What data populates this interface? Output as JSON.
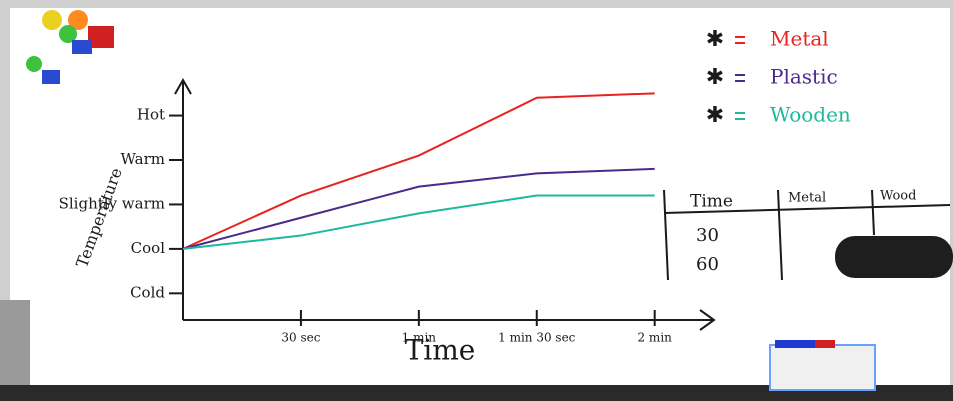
{
  "chart_data": {
    "type": "line",
    "x_label": "Time",
    "y_label": "Temperature",
    "x": [
      0,
      30,
      60,
      90,
      120
    ],
    "xlim": [
      0,
      130
    ],
    "xticks": [
      {
        "value": 30,
        "label": "30 sec"
      },
      {
        "value": 60,
        "label": "1 min"
      },
      {
        "value": 90,
        "label": "1 min 30 sec"
      },
      {
        "value": 120,
        "label": "2 min"
      }
    ],
    "ylim": [
      -0.6,
      4.8
    ],
    "yticks": [
      {
        "value": 0,
        "label": "Cold"
      },
      {
        "value": 1,
        "label": "Cool"
      },
      {
        "value": 2,
        "label": "Slightly warm"
      },
      {
        "value": 3,
        "label": "Warm"
      },
      {
        "value": 4,
        "label": "Hot"
      }
    ],
    "series": [
      {
        "name": "Metal",
        "color": "#e8231f",
        "values": [
          1,
          2.2,
          3.1,
          4.4,
          4.5
        ]
      },
      {
        "name": "Plastic",
        "color": "#4a2a8a",
        "values": [
          1,
          1.7,
          2.4,
          2.7,
          2.8
        ]
      },
      {
        "name": "Wooden",
        "color": "#1fb89a",
        "values": [
          1,
          1.3,
          1.8,
          2.2,
          2.2
        ]
      }
    ],
    "table": {
      "header": [
        "Time",
        "Metal",
        "Wood"
      ],
      "rows": [
        "30",
        "60"
      ]
    }
  }
}
